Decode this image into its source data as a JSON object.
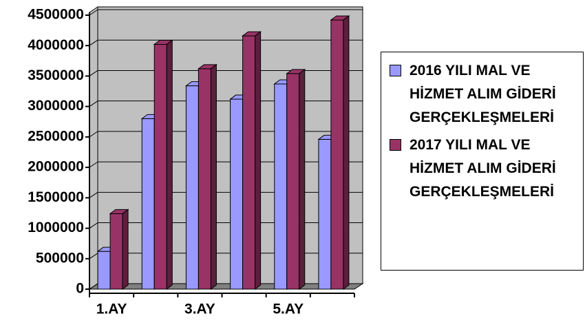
{
  "chart_data": {
    "type": "bar3d",
    "categories": [
      "1.AY",
      null,
      "3.AY",
      null,
      "5.AY",
      null
    ],
    "series": [
      {
        "name": "2016 YILI MAL VE HİZMET ALIM GİDERİ GERÇEKLEŞMELERİ",
        "color": "#9999ff",
        "values": [
          620000,
          2800000,
          3340000,
          3120000,
          3370000,
          2460000
        ]
      },
      {
        "name": "2017 YILI MAL VE HİZMET ALIM GİDERİ GERÇEKLEŞMELERİ",
        "color": "#993366",
        "values": [
          1240000,
          4020000,
          3620000,
          4160000,
          3540000,
          4420000
        ]
      }
    ],
    "ylim": [
      0,
      4500000
    ],
    "yticks": [
      0,
      500000,
      1000000,
      1500000,
      2000000,
      2500000,
      3000000,
      3500000,
      4000000,
      4500000
    ],
    "legend": "right"
  }
}
